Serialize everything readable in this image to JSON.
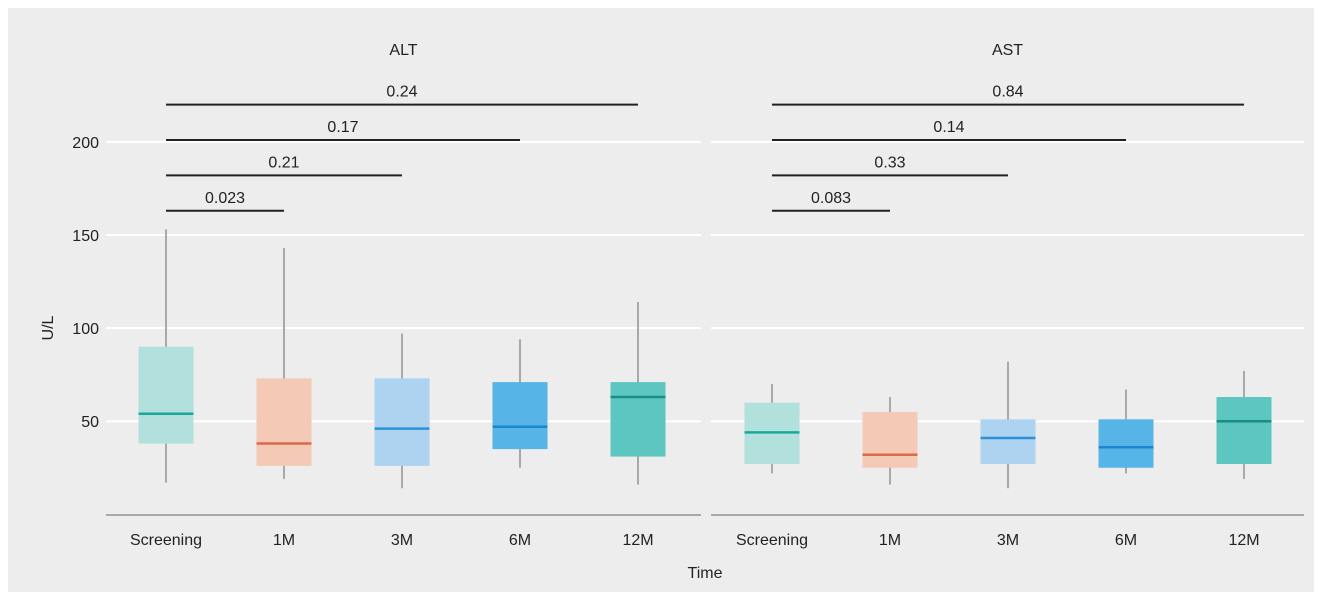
{
  "chart_data": {
    "type": "boxplot",
    "ylabel": "U/L",
    "xlabel": "Time",
    "categories": [
      "Screening",
      "1M",
      "3M",
      "6M",
      "12M"
    ],
    "yticks": [
      50,
      100,
      150,
      200
    ],
    "ylim": [
      5,
      230
    ],
    "grid": true,
    "colors": {
      "Screening": {
        "fill": "#b2e0dc",
        "median": "#1aa89a"
      },
      "1M": {
        "fill": "#f4c9b5",
        "median": "#d96b47"
      },
      "3M": {
        "fill": "#aed3f0",
        "median": "#2a93d8"
      },
      "6M": {
        "fill": "#56b4e6",
        "median": "#1d87cc"
      },
      "12M": {
        "fill": "#5ec6c0",
        "median": "#178f86"
      },
      "whisker": "#a9a9a9",
      "bracket": "#222222"
    },
    "panels": [
      {
        "title": "ALT",
        "boxes": [
          {
            "category": "Screening",
            "min": 17,
            "q1": 38,
            "median": 54,
            "q3": 90,
            "max": 153
          },
          {
            "category": "1M",
            "min": 19,
            "q1": 26,
            "median": 38,
            "q3": 73,
            "max": 143
          },
          {
            "category": "3M",
            "min": 14,
            "q1": 26,
            "median": 46,
            "q3": 73,
            "max": 97
          },
          {
            "category": "6M",
            "min": 25,
            "q1": 35,
            "median": 47,
            "q3": 71,
            "max": 94
          },
          {
            "category": "12M",
            "min": 16,
            "q1": 31,
            "median": 63,
            "q3": 71,
            "max": 114
          }
        ],
        "comparisons": [
          {
            "from": "Screening",
            "to": "1M",
            "p": "0.023",
            "y": 163
          },
          {
            "from": "Screening",
            "to": "3M",
            "p": "0.21",
            "y": 182
          },
          {
            "from": "Screening",
            "to": "6M",
            "p": "0.17",
            "y": 201
          },
          {
            "from": "Screening",
            "to": "12M",
            "p": "0.24",
            "y": 220
          }
        ]
      },
      {
        "title": "AST",
        "boxes": [
          {
            "category": "Screening",
            "min": 22,
            "q1": 27,
            "median": 44,
            "q3": 60,
            "max": 70
          },
          {
            "category": "1M",
            "min": 16,
            "q1": 25,
            "median": 32,
            "q3": 55,
            "max": 63
          },
          {
            "category": "3M",
            "min": 14,
            "q1": 27,
            "median": 41,
            "q3": 51,
            "max": 82
          },
          {
            "category": "6M",
            "min": 22,
            "q1": 25,
            "median": 36,
            "q3": 51,
            "max": 67
          },
          {
            "category": "12M",
            "min": 19,
            "q1": 27,
            "median": 50,
            "q3": 63,
            "max": 77
          }
        ],
        "comparisons": [
          {
            "from": "Screening",
            "to": "1M",
            "p": "0.083",
            "y": 163
          },
          {
            "from": "Screening",
            "to": "3M",
            "p": "0.33",
            "y": 182
          },
          {
            "from": "Screening",
            "to": "6M",
            "p": "0.14",
            "y": 201
          },
          {
            "from": "Screening",
            "to": "12M",
            "p": "0.84",
            "y": 220
          }
        ]
      }
    ]
  }
}
